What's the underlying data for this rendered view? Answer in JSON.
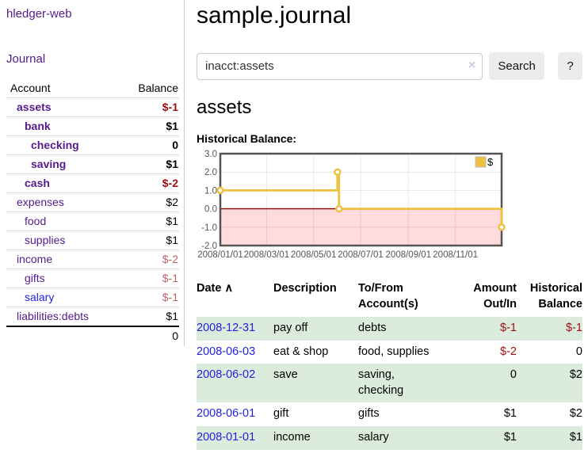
{
  "sidebar": {
    "app_title": "hledger-web",
    "nav": {
      "journal_label": "Journal"
    },
    "accounts_header": {
      "account": "Account",
      "balance": "Balance"
    },
    "accounts": [
      {
        "name": "assets",
        "balance": "$-1",
        "indent": 0,
        "emphasis": true,
        "balance_style": "negative-strong"
      },
      {
        "name": "bank",
        "balance": "$1",
        "indent": 1,
        "emphasis": true,
        "balance_style": "normal"
      },
      {
        "name": "checking",
        "balance": "0",
        "indent": 2,
        "emphasis": true,
        "balance_style": "normal"
      },
      {
        "name": "saving",
        "balance": "$1",
        "indent": 2,
        "emphasis": true,
        "balance_style": "normal"
      },
      {
        "name": "cash",
        "balance": "$-2",
        "indent": 1,
        "emphasis": true,
        "balance_style": "negative-strong"
      },
      {
        "name": "expenses",
        "balance": "$2",
        "indent": 0,
        "emphasis": false,
        "balance_style": "normal"
      },
      {
        "name": "food",
        "balance": "$1",
        "indent": 1,
        "emphasis": false,
        "balance_style": "normal"
      },
      {
        "name": "supplies",
        "balance": "$1",
        "indent": 1,
        "emphasis": false,
        "balance_style": "normal"
      },
      {
        "name": "income",
        "balance": "$-2",
        "indent": 0,
        "emphasis": false,
        "balance_style": "negative-soft"
      },
      {
        "name": "gifts",
        "balance": "$-1",
        "indent": 1,
        "emphasis": false,
        "balance_style": "negative-soft"
      },
      {
        "name": "salary",
        "balance": "$-1",
        "indent": 1,
        "emphasis": false,
        "balance_style": "negative-soft",
        "link_color": "#2222dd"
      },
      {
        "name": "liabilities:debts",
        "balance": "$1",
        "indent": 0,
        "emphasis": false,
        "balance_style": "normal"
      }
    ],
    "total": "0"
  },
  "header": {
    "title": "sample.journal"
  },
  "search": {
    "value": "inacct:assets",
    "clear_label": "×",
    "button_label": "Search",
    "help_label": "?"
  },
  "account_page": {
    "title": "assets"
  },
  "chart_data": {
    "type": "line",
    "title": "Historical Balance:",
    "series": [
      {
        "name": "$",
        "color": "#edc240",
        "step": true,
        "points": [
          [
            "2008-01-01",
            1
          ],
          [
            "2008-06-01",
            2
          ],
          [
            "2008-06-03",
            0
          ],
          [
            "2008-12-31",
            -1
          ]
        ]
      }
    ],
    "x_range": [
      "2008-01-01",
      "2008-12-31"
    ],
    "ylim": [
      -2,
      3
    ],
    "x_tick_labels": [
      "2008/01/01",
      "2008/03/01",
      "2008/05/01",
      "2008/07/01",
      "2008/09/01",
      "2008/11/01"
    ],
    "y_tick_labels": [
      "3.0",
      "2.0",
      "1.0",
      "0.0",
      "-1.0",
      "-2.0"
    ],
    "grid": true,
    "negative_fill": "#ffdbdb",
    "zero_line_color": "#8b0000",
    "legend": {
      "label": "$",
      "position": "top-right"
    }
  },
  "register": {
    "columns": {
      "date": "Date",
      "description": "Description",
      "accounts": "To/From Account(s)",
      "amount": "Amount Out/In",
      "balance": "Historical Balance"
    },
    "sort_indicator": "∧",
    "rows": [
      {
        "date": "2008-12-31",
        "description": "pay off",
        "accounts": "debts",
        "amount": "$-1",
        "balance": "$-1"
      },
      {
        "date": "2008-06-03",
        "description": "eat & shop",
        "accounts": "food, supplies",
        "amount": "$-2",
        "balance": "0"
      },
      {
        "date": "2008-06-02",
        "description": "save",
        "accounts": "saving,\nchecking",
        "amount": "0",
        "balance": "$2"
      },
      {
        "date": "2008-06-01",
        "description": "gift",
        "accounts": "gifts",
        "amount": "$1",
        "balance": "$2"
      },
      {
        "date": "2008-01-01",
        "description": "income",
        "accounts": "salary",
        "amount": "$1",
        "balance": "$1"
      }
    ]
  },
  "colors": {
    "link_purple": "#551a8b",
    "link_blue": "#2222dd",
    "negative_strong": "#9d0f0f",
    "negative_soft": "#c05f6a",
    "row_green": "#dcecdc",
    "series_gold": "#edc240",
    "chart_negative_region": "#ffdbdb",
    "chart_zero_line": "#8b0000"
  }
}
